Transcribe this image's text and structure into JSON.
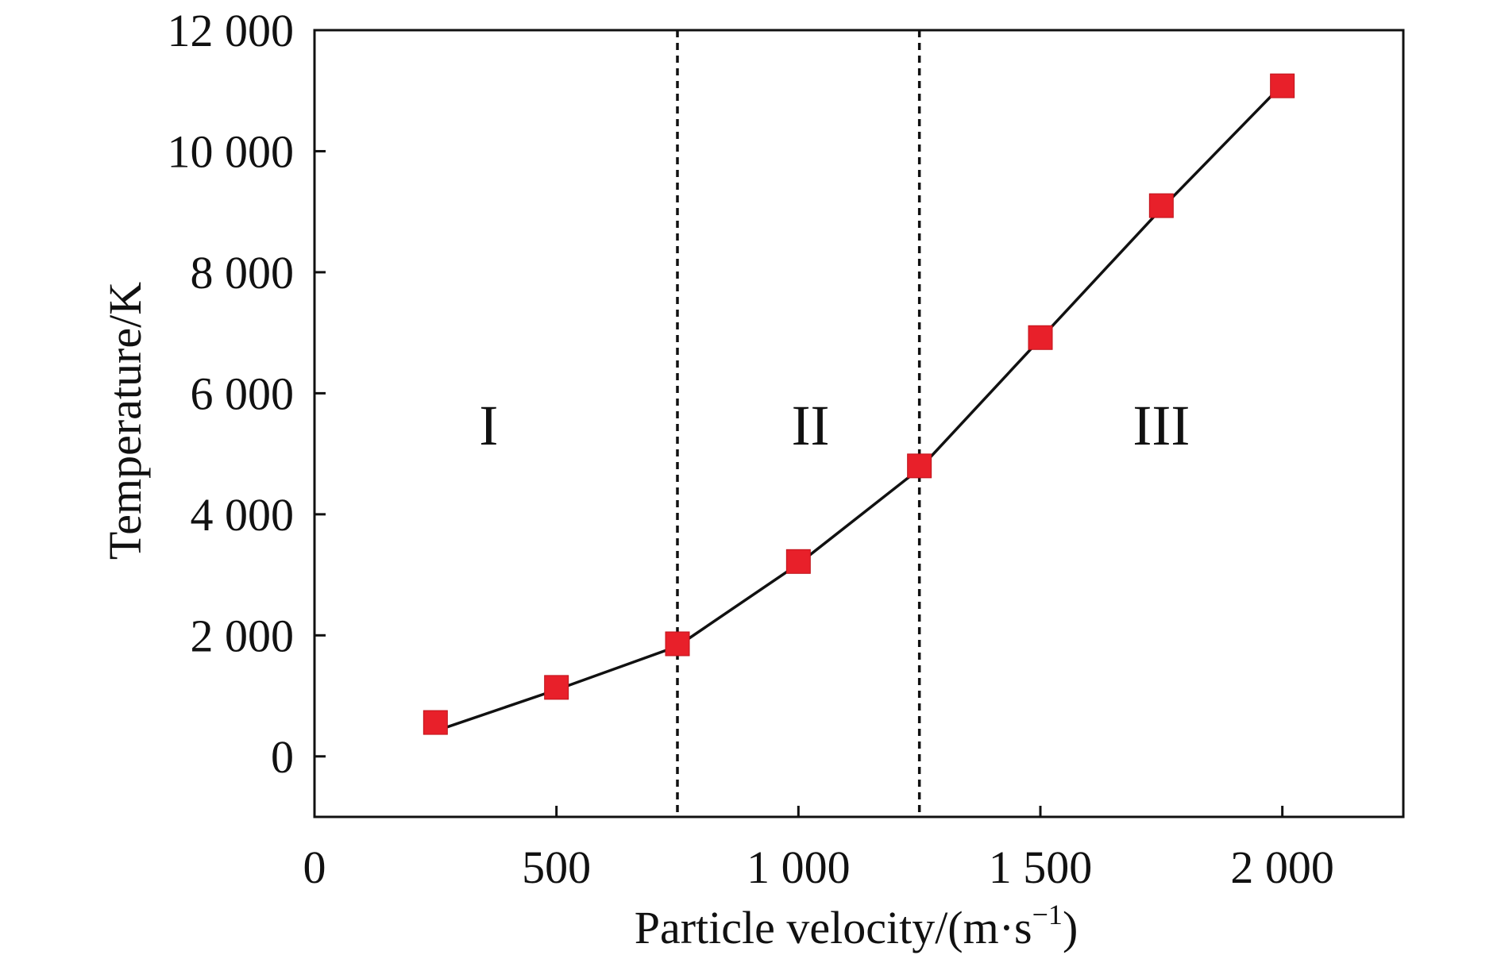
{
  "chart_data": {
    "type": "scatter",
    "title": "",
    "xlabel": "Particle velocity/(m·s",
    "xlabel_superscript": "−1",
    "xlabel_suffix": ")",
    "ylabel": "Temperature/K",
    "xlim": [
      0,
      2250
    ],
    "ylim": [
      -1000,
      12000
    ],
    "x_ticks": [
      {
        "value": 0,
        "label": "0"
      },
      {
        "value": 500,
        "label": "500"
      },
      {
        "value": 1000,
        "label": "1 000"
      },
      {
        "value": 1500,
        "label": "1 500"
      },
      {
        "value": 2000,
        "label": "2 000"
      }
    ],
    "y_ticks": [
      {
        "value": 0,
        "label": "0"
      },
      {
        "value": 2000,
        "label": "2 000"
      },
      {
        "value": 4000,
        "label": "4 000"
      },
      {
        "value": 6000,
        "label": "6 000"
      },
      {
        "value": 8000,
        "label": "8 000"
      },
      {
        "value": 10000,
        "label": "10 000"
      },
      {
        "value": 12000,
        "label": "12 000"
      }
    ],
    "grid": false,
    "legend": "none",
    "series": [
      {
        "marker": "square",
        "color": "#e8202a",
        "x": [
          250,
          500,
          750,
          1000,
          1250,
          1500,
          1750,
          2000
        ],
        "y": [
          560,
          1140,
          1860,
          3220,
          4800,
          6920,
          9100,
          11080
        ]
      }
    ],
    "fit_line": {
      "color": "#111111",
      "x": [
        250,
        500,
        750,
        1000,
        1250,
        1500,
        1750,
        2000
      ],
      "y": [
        420,
        1100,
        1820,
        3180,
        4750,
        6900,
        9050,
        11100
      ]
    },
    "region_dividers": [
      750,
      1250
    ],
    "region_labels": [
      {
        "label": "I",
        "x": 360,
        "y": 5150
      },
      {
        "label": "II",
        "x": 1025,
        "y": 5150
      },
      {
        "label": "III",
        "x": 1750,
        "y": 5150
      }
    ]
  }
}
